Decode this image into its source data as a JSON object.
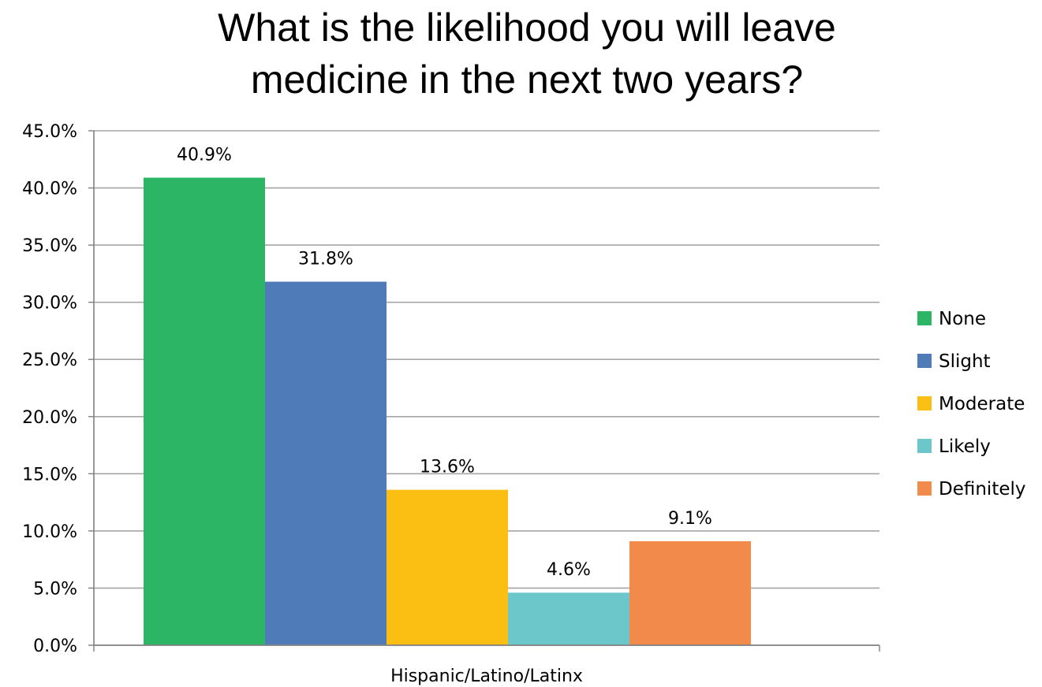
{
  "chart_data": {
    "type": "bar",
    "title": "What is the likelihood you will leave medicine in the next two years?",
    "title_lines": [
      "What is the likelihood you will leave",
      "medicine in the next two years?"
    ],
    "categories": [
      "Hispanic/Latino/Latinx"
    ],
    "series": [
      {
        "name": "None",
        "values": [
          40.9
        ],
        "label": "40.9%",
        "color": "#2bb565"
      },
      {
        "name": "Slight",
        "values": [
          31.8
        ],
        "label": "31.8%",
        "color": "#4f7bb8"
      },
      {
        "name": "Moderate",
        "values": [
          13.6
        ],
        "label": "13.6%",
        "color": "#fbbf13"
      },
      {
        "name": "Likely",
        "values": [
          4.6
        ],
        "label": "4.6%",
        "color": "#6cc7ca"
      },
      {
        "name": "Definitely",
        "values": [
          9.1
        ],
        "label": "9.1%",
        "color": "#f28a4c"
      }
    ],
    "ylim": [
      0,
      45
    ],
    "y_ticks": [
      "0.0%",
      "5.0%",
      "10.0%",
      "15.0%",
      "20.0%",
      "25.0%",
      "30.0%",
      "35.0%",
      "40.0%",
      "45.0%"
    ],
    "y_tick_values": [
      0,
      5,
      10,
      15,
      20,
      25,
      30,
      35,
      40,
      45
    ],
    "xlabel": "",
    "ylabel": "",
    "grid": true,
    "legend_position": "right"
  }
}
